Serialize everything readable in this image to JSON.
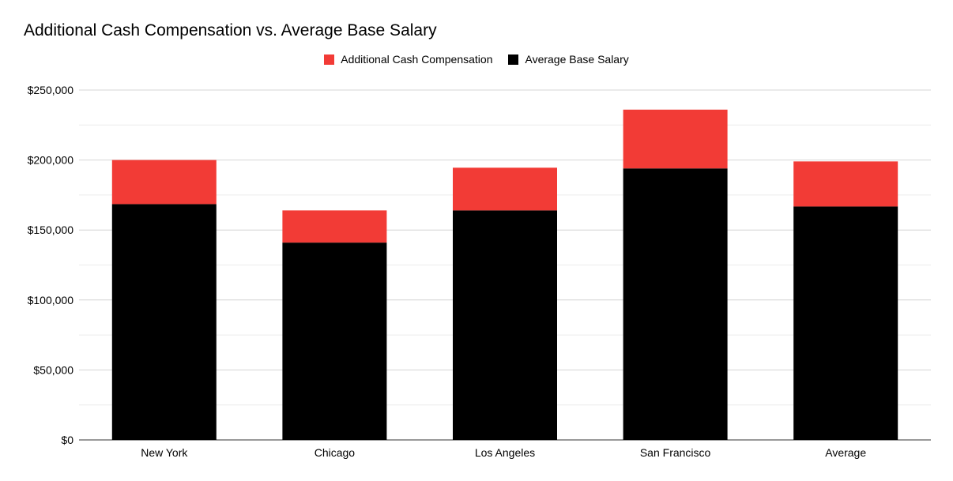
{
  "chart_data": {
    "type": "bar",
    "stacked": true,
    "title": "Additional Cash Compensation vs. Average Base Salary",
    "categories": [
      "New York",
      "Chicago",
      "Los Angeles",
      "San Francisco",
      "Average"
    ],
    "series": [
      {
        "name": "Average Base Salary",
        "color": "#000000",
        "values": [
          168500,
          141000,
          164000,
          194000,
          166800
        ]
      },
      {
        "name": "Additional Cash Compensation",
        "color": "#f23b36",
        "values": [
          31500,
          23000,
          30500,
          42000,
          32200
        ]
      }
    ],
    "legend": [
      {
        "name": "Additional Cash Compensation",
        "color": "#f23b36"
      },
      {
        "name": "Average Base Salary",
        "color": "#000000"
      }
    ],
    "legend_position": "top-center",
    "ylim": [
      0,
      250000
    ],
    "yticks": [
      "$0",
      "$50,000",
      "$100,000",
      "$150,000",
      "$200,000",
      "$250,000"
    ],
    "ytick_values": [
      0,
      50000,
      100000,
      150000,
      200000,
      250000
    ],
    "xlabel": "",
    "ylabel": "",
    "grid": true
  }
}
